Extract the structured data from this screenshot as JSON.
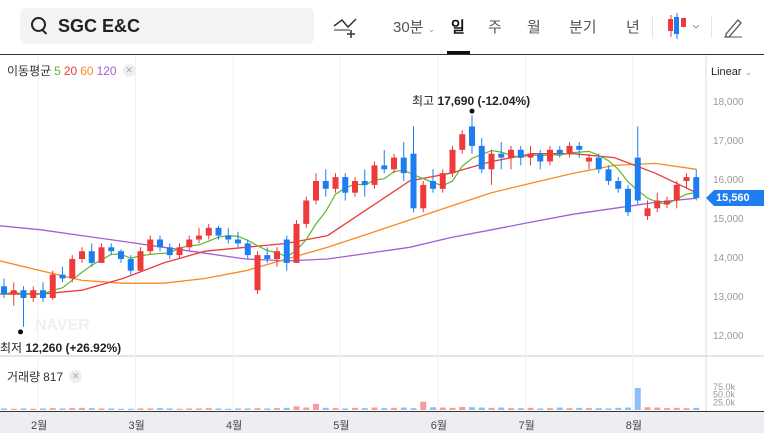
{
  "header": {
    "search_value": "SGC E&C",
    "interval_dropdown": "30분",
    "tabs": [
      "일",
      "주",
      "월",
      "분기",
      "년"
    ],
    "active_tab": "일"
  },
  "legend": {
    "label": "이동평균",
    "periods": [
      "5",
      "20",
      "60",
      "120"
    ],
    "colors": [
      "#5cb82a",
      "#ee3a3a",
      "#f98a1f",
      "#a25fd8"
    ]
  },
  "scale_mode": "Linear",
  "colors": {
    "up": "#ee3a3a",
    "down": "#1e7ef0",
    "accent": "#1e7ef0"
  },
  "chart_data": {
    "type": "candlestick",
    "y_ticks": [
      "18,000",
      "17,000",
      "16,000",
      "15,000",
      "14,000",
      "13,000",
      "12,000"
    ],
    "y_tick_values": [
      18000,
      17000,
      16000,
      15000,
      14000,
      13000,
      12000
    ],
    "ylim": [
      11500,
      18600
    ],
    "x_ticks": [
      "2월",
      "3월",
      "4월",
      "5월",
      "6월",
      "7월",
      "8월"
    ],
    "x_tick_index": [
      4,
      14,
      24,
      35,
      45,
      54,
      65
    ],
    "current_price": "15,560",
    "high_annotation": {
      "label": "최고",
      "value": "17,690 (-12.04%)",
      "index": 48,
      "price": 17690
    },
    "low_annotation": {
      "label": "최저",
      "value": "12,260 (+26.92%)",
      "index": 2,
      "price": 12260
    },
    "candles": [
      [
        13300,
        13500,
        13000,
        13100
      ],
      [
        13100,
        13400,
        12800,
        13200
      ],
      [
        13200,
        13300,
        12260,
        13000
      ],
      [
        13000,
        13300,
        12900,
        13200
      ],
      [
        13200,
        13400,
        12900,
        13000
      ],
      [
        13000,
        13700,
        12950,
        13600
      ],
      [
        13600,
        13800,
        13400,
        13500
      ],
      [
        13500,
        14100,
        13400,
        14000
      ],
      [
        14000,
        14300,
        13900,
        14200
      ],
      [
        14200,
        14400,
        13800,
        13900
      ],
      [
        13900,
        14400,
        13900,
        14300
      ],
      [
        14300,
        14400,
        14100,
        14200
      ],
      [
        14200,
        14250,
        13900,
        14000
      ],
      [
        14000,
        14100,
        13600,
        13700
      ],
      [
        13700,
        14300,
        13650,
        14200
      ],
      [
        14200,
        14600,
        14100,
        14500
      ],
      [
        14500,
        14600,
        14200,
        14300
      ],
      [
        14300,
        14400,
        14000,
        14100
      ],
      [
        14100,
        14400,
        14000,
        14300
      ],
      [
        14300,
        14600,
        14200,
        14500
      ],
      [
        14500,
        14800,
        14400,
        14600
      ],
      [
        14600,
        14900,
        14500,
        14800
      ],
      [
        14800,
        14850,
        14500,
        14600
      ],
      [
        14600,
        14800,
        14400,
        14500
      ],
      [
        14500,
        14700,
        14300,
        14400
      ],
      [
        14400,
        14500,
        14000,
        14100
      ],
      [
        13200,
        14200,
        13100,
        14100
      ],
      [
        14100,
        14300,
        13900,
        14000
      ],
      [
        14000,
        14300,
        13800,
        14200
      ],
      [
        14500,
        14600,
        13700,
        13900
      ],
      [
        13900,
        15000,
        13900,
        14900
      ],
      [
        14900,
        15600,
        14800,
        15500
      ],
      [
        15500,
        16200,
        15400,
        16000
      ],
      [
        16000,
        16300,
        15600,
        15800
      ],
      [
        15800,
        16200,
        15700,
        16100
      ],
      [
        16100,
        16200,
        15500,
        15700
      ],
      [
        15700,
        16100,
        15600,
        16000
      ],
      [
        16000,
        16300,
        15600,
        15900
      ],
      [
        15900,
        16500,
        15800,
        16400
      ],
      [
        16400,
        16800,
        16200,
        16300
      ],
      [
        16300,
        16700,
        16200,
        16600
      ],
      [
        16600,
        17000,
        16000,
        16200
      ],
      [
        16700,
        17400,
        15200,
        15300
      ],
      [
        15300,
        16000,
        15200,
        15900
      ],
      [
        16000,
        16300,
        15700,
        15800
      ],
      [
        15800,
        16300,
        15700,
        16200
      ],
      [
        16200,
        16900,
        16100,
        16800
      ],
      [
        16800,
        17300,
        16700,
        17200
      ],
      [
        17400,
        17690,
        16700,
        16900
      ],
      [
        16900,
        17100,
        16200,
        16300
      ],
      [
        16300,
        16800,
        15900,
        16700
      ],
      [
        16700,
        17000,
        16300,
        16600
      ],
      [
        16600,
        16900,
        16300,
        16800
      ],
      [
        16800,
        16900,
        16400,
        16600
      ],
      [
        16600,
        16900,
        16400,
        16700
      ],
      [
        16700,
        16800,
        16300,
        16500
      ],
      [
        16500,
        16900,
        16400,
        16800
      ],
      [
        16800,
        16900,
        16600,
        16700
      ],
      [
        16700,
        17000,
        16600,
        16900
      ],
      [
        16900,
        17000,
        16600,
        16800
      ],
      [
        16500,
        16700,
        16300,
        16600
      ],
      [
        16600,
        16700,
        16200,
        16300
      ],
      [
        16300,
        16400,
        15900,
        16000
      ],
      [
        16000,
        16100,
        15700,
        15800
      ],
      [
        15800,
        15900,
        15100,
        15200
      ],
      [
        16600,
        17400,
        15400,
        15500
      ],
      [
        15100,
        15500,
        15000,
        15300
      ],
      [
        15300,
        15700,
        15200,
        15500
      ],
      [
        15400,
        15600,
        15300,
        15500
      ],
      [
        15500,
        16000,
        15300,
        15900
      ],
      [
        16000,
        16200,
        15800,
        16100
      ],
      [
        16100,
        16300,
        15500,
        15560
      ]
    ],
    "ma20": [
      13100,
      13100,
      13200,
      13500,
      13900,
      14200,
      14300,
      14400,
      14600,
      15300,
      16000,
      16200,
      16500,
      16700,
      16700,
      16600,
      16200,
      15700
    ],
    "ma60": [
      13950,
      13700,
      13450,
      13380,
      13380,
      13500,
      13700,
      14000,
      14300,
      14650,
      15000,
      15350,
      15700,
      15950,
      16200,
      16400,
      16450,
      16300
    ],
    "ma120": [
      14850,
      14750,
      14600,
      14450,
      14300,
      14150,
      14000,
      13950,
      14000,
      14150,
      14300,
      14550,
      14750,
      14950,
      15150,
      15300,
      15450,
      15560
    ],
    "volume": {
      "label": "거래량",
      "value": "817",
      "ticks": [
        "75.0k",
        "50.0k",
        "25.0k"
      ],
      "tick_values": [
        75,
        50,
        25
      ],
      "values_k": [
        5,
        4,
        5,
        4,
        5,
        6,
        5,
        6,
        7,
        6,
        5,
        5,
        4,
        4,
        5,
        5,
        6,
        5,
        4,
        5,
        5,
        6,
        5,
        4,
        5,
        5,
        6,
        5,
        6,
        7,
        12,
        8,
        20,
        7,
        6,
        5,
        7,
        6,
        8,
        6,
        7,
        8,
        6,
        27,
        9,
        8,
        7,
        10,
        9,
        8,
        7,
        8,
        6,
        6,
        7,
        5,
        6,
        8,
        6,
        7,
        6,
        6,
        5,
        7,
        8,
        72,
        9,
        8,
        6,
        7,
        6,
        7
      ]
    }
  }
}
